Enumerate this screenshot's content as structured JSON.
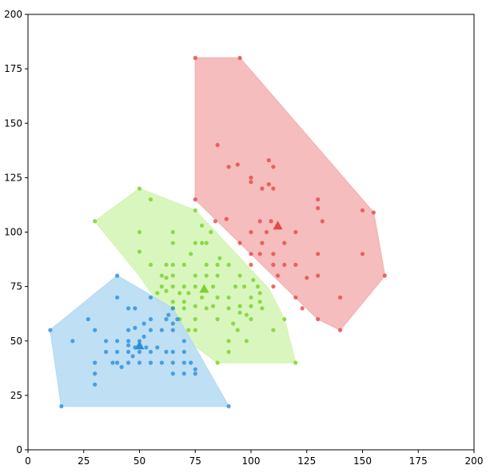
{
  "chart_data": {
    "type": "scatter",
    "title": "",
    "xlabel": "",
    "ylabel": "",
    "xlim": [
      0,
      200
    ],
    "ylim": [
      0,
      200
    ],
    "x_ticks": [
      "0",
      "25",
      "50",
      "75",
      "100",
      "125",
      "150",
      "175",
      "200"
    ],
    "y_ticks": [
      "0",
      "25",
      "50",
      "75",
      "100",
      "125",
      "150",
      "175",
      "200"
    ],
    "grid": false,
    "legend": "none",
    "series": [
      {
        "color": "#e64848",
        "fill": "#f4b6b6",
        "hull": [
          [
            75,
            180
          ],
          [
            95,
            180
          ],
          [
            155,
            109
          ],
          [
            160,
            80
          ],
          [
            140,
            55
          ],
          [
            130,
            60
          ],
          [
            75,
            115
          ]
        ],
        "centroid": [
          112,
          103
        ],
        "points": [
          [
            75,
            180
          ],
          [
            95,
            180
          ],
          [
            85,
            140
          ],
          [
            90,
            130
          ],
          [
            94,
            131
          ],
          [
            108,
            133
          ],
          [
            110,
            130
          ],
          [
            100,
            125
          ],
          [
            100,
            123
          ],
          [
            105,
            120
          ],
          [
            108,
            122
          ],
          [
            110,
            120
          ],
          [
            75,
            115
          ],
          [
            130,
            115
          ],
          [
            130,
            111
          ],
          [
            150,
            110
          ],
          [
            155,
            109
          ],
          [
            89,
            106
          ],
          [
            104,
            105
          ],
          [
            109,
            105
          ],
          [
            132,
            105
          ],
          [
            84,
            105
          ],
          [
            95,
            95
          ],
          [
            100,
            100
          ],
          [
            107,
            100
          ],
          [
            120,
            100
          ],
          [
            105,
            95
          ],
          [
            115,
            95
          ],
          [
            100,
            90
          ],
          [
            104,
            90
          ],
          [
            110,
            90
          ],
          [
            130,
            90
          ],
          [
            150,
            90
          ],
          [
            100,
            85
          ],
          [
            110,
            85
          ],
          [
            115,
            85
          ],
          [
            120,
            85
          ],
          [
            112,
            80
          ],
          [
            125,
            79
          ],
          [
            130,
            80
          ],
          [
            160,
            80
          ],
          [
            110,
            75
          ],
          [
            120,
            70
          ],
          [
            140,
            70
          ],
          [
            123,
            65
          ],
          [
            130,
            60
          ],
          [
            140,
            55
          ]
        ]
      },
      {
        "color": "#79d12c",
        "fill": "#d6f5b8",
        "hull": [
          [
            30,
            105
          ],
          [
            50,
            120
          ],
          [
            75,
            110
          ],
          [
            108,
            74
          ],
          [
            115,
            60
          ],
          [
            120,
            40
          ],
          [
            85,
            40
          ],
          [
            68,
            53
          ],
          [
            50,
            80
          ]
        ],
        "centroid": [
          79,
          74
        ],
        "points": [
          [
            50,
            120
          ],
          [
            55,
            115
          ],
          [
            30,
            105
          ],
          [
            75,
            110
          ],
          [
            65,
            100
          ],
          [
            50,
            100
          ],
          [
            78,
            103
          ],
          [
            65,
            95
          ],
          [
            75,
            95
          ],
          [
            78,
            95
          ],
          [
            80,
            95
          ],
          [
            82,
            100
          ],
          [
            50,
            91
          ],
          [
            55,
            85
          ],
          [
            62,
            85
          ],
          [
            65,
            85
          ],
          [
            70,
            85
          ],
          [
            73,
            90
          ],
          [
            80,
            85
          ],
          [
            85,
            85
          ],
          [
            90,
            85
          ],
          [
            86,
            88
          ],
          [
            75,
            80
          ],
          [
            80,
            80
          ],
          [
            85,
            80
          ],
          [
            95,
            80
          ],
          [
            60,
            80
          ],
          [
            62,
            79
          ],
          [
            65,
            80
          ],
          [
            60,
            75
          ],
          [
            65,
            75
          ],
          [
            70,
            75
          ],
          [
            75,
            75
          ],
          [
            83,
            75
          ],
          [
            93,
            75
          ],
          [
            97,
            75
          ],
          [
            101,
            78
          ],
          [
            103,
            75
          ],
          [
            58,
            72
          ],
          [
            62,
            73
          ],
          [
            68,
            72
          ],
          [
            72,
            72
          ],
          [
            78,
            70
          ],
          [
            85,
            70
          ],
          [
            90,
            70
          ],
          [
            100,
            70
          ],
          [
            104,
            72
          ],
          [
            65,
            68
          ],
          [
            70,
            68
          ],
          [
            75,
            66
          ],
          [
            83,
            66
          ],
          [
            90,
            65
          ],
          [
            95,
            66
          ],
          [
            100,
            66
          ],
          [
            104,
            68
          ],
          [
            65,
            65
          ],
          [
            70,
            65
          ],
          [
            80,
            65
          ],
          [
            95,
            63
          ],
          [
            98,
            62
          ],
          [
            100,
            60
          ],
          [
            105,
            65
          ],
          [
            68,
            60
          ],
          [
            75,
            60
          ],
          [
            85,
            60
          ],
          [
            92,
            58
          ],
          [
            94,
            55
          ],
          [
            115,
            60
          ],
          [
            110,
            55
          ],
          [
            75,
            55
          ],
          [
            90,
            50
          ],
          [
            98,
            50
          ],
          [
            90,
            45
          ],
          [
            85,
            40
          ],
          [
            120,
            40
          ],
          [
            72,
            55
          ]
        ]
      },
      {
        "color": "#2a8fdb",
        "fill": "#b8dbf4",
        "hull": [
          [
            40,
            80
          ],
          [
            65,
            65
          ],
          [
            90,
            20
          ],
          [
            15,
            20
          ],
          [
            10,
            55
          ]
        ],
        "centroid": [
          50,
          48
        ],
        "points": [
          [
            40,
            80
          ],
          [
            40,
            70
          ],
          [
            45,
            65
          ],
          [
            48,
            65
          ],
          [
            55,
            70
          ],
          [
            65,
            65
          ],
          [
            45,
            55
          ],
          [
            48,
            56
          ],
          [
            52,
            58
          ],
          [
            55,
            60
          ],
          [
            62,
            60
          ],
          [
            65,
            58
          ],
          [
            67,
            60
          ],
          [
            63,
            62
          ],
          [
            10,
            55
          ],
          [
            27,
            60
          ],
          [
            30,
            55
          ],
          [
            20,
            50
          ],
          [
            35,
            50
          ],
          [
            40,
            50
          ],
          [
            45,
            50
          ],
          [
            50,
            50
          ],
          [
            55,
            55
          ],
          [
            60,
            55
          ],
          [
            65,
            55
          ],
          [
            70,
            50
          ],
          [
            35,
            45
          ],
          [
            40,
            45
          ],
          [
            45,
            45
          ],
          [
            47,
            43
          ],
          [
            50,
            45
          ],
          [
            55,
            45
          ],
          [
            58,
            47
          ],
          [
            62,
            45
          ],
          [
            65,
            45
          ],
          [
            70,
            45
          ],
          [
            38,
            40
          ],
          [
            40,
            40
          ],
          [
            45,
            40
          ],
          [
            50,
            40
          ],
          [
            55,
            40
          ],
          [
            60,
            40
          ],
          [
            65,
            40
          ],
          [
            70,
            40
          ],
          [
            73,
            40
          ],
          [
            75,
            37
          ],
          [
            30,
            35
          ],
          [
            65,
            35
          ],
          [
            70,
            35
          ],
          [
            75,
            35
          ],
          [
            30,
            30
          ],
          [
            15,
            20
          ],
          [
            90,
            20
          ],
          [
            53,
            47
          ],
          [
            52,
            52
          ],
          [
            48,
            47
          ],
          [
            45,
            48
          ],
          [
            42,
            38
          ],
          [
            30,
            40
          ]
        ]
      }
    ]
  }
}
